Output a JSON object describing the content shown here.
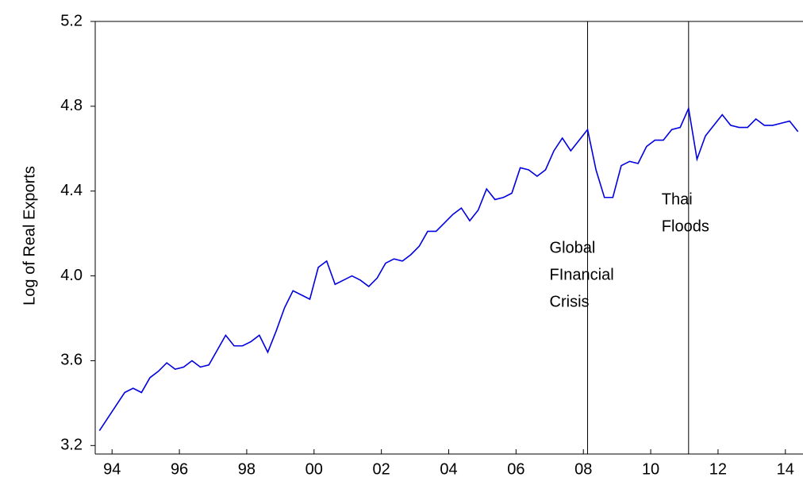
{
  "chart_data": {
    "type": "line",
    "y_label": "Log of Real Exports",
    "x": [
      1994.125,
      1994.375,
      1994.625,
      1994.875,
      1995.125,
      1995.375,
      1995.625,
      1995.875,
      1996.125,
      1996.375,
      1996.625,
      1996.875,
      1997.125,
      1997.375,
      1997.625,
      1997.875,
      1998.125,
      1998.375,
      1998.625,
      1998.875,
      1999.125,
      1999.375,
      1999.625,
      1999.875,
      2000.125,
      2000.375,
      2000.625,
      2000.875,
      2001.125,
      2001.375,
      2001.625,
      2001.875,
      2002.125,
      2002.375,
      2002.625,
      2002.875,
      2003.125,
      2003.375,
      2003.625,
      2003.875,
      2004.125,
      2004.375,
      2004.625,
      2004.875,
      2005.125,
      2005.375,
      2005.625,
      2005.875,
      2006.125,
      2006.375,
      2006.625,
      2006.875,
      2007.125,
      2007.375,
      2007.625,
      2007.875,
      2008.125,
      2008.375,
      2008.625,
      2008.875,
      2009.125,
      2009.375,
      2009.625,
      2009.875,
      2010.125,
      2010.375,
      2010.625,
      2010.875,
      2011.125,
      2011.375,
      2011.625,
      2011.875,
      2012.125,
      2012.375,
      2012.625,
      2012.875,
      2013.125,
      2013.375,
      2013.625,
      2013.875,
      2014.125,
      2014.375,
      2014.625,
      2014.875
    ],
    "series": [
      {
        "name": "Log of Real Exports",
        "color": "#0000e0",
        "values": [
          3.27,
          3.33,
          3.39,
          3.45,
          3.47,
          3.45,
          3.52,
          3.55,
          3.59,
          3.56,
          3.57,
          3.6,
          3.57,
          3.58,
          3.65,
          3.72,
          3.67,
          3.67,
          3.69,
          3.72,
          3.64,
          3.74,
          3.85,
          3.93,
          3.91,
          3.89,
          4.04,
          4.07,
          3.96,
          3.98,
          4.0,
          3.98,
          3.95,
          3.99,
          4.06,
          4.08,
          4.07,
          4.1,
          4.14,
          4.21,
          4.21,
          4.25,
          4.29,
          4.32,
          4.26,
          4.31,
          4.41,
          4.36,
          4.37,
          4.39,
          4.51,
          4.5,
          4.47,
          4.5,
          4.59,
          4.65,
          4.59,
          4.64,
          4.69,
          4.5,
          4.37,
          4.37,
          4.52,
          4.54,
          4.53,
          4.61,
          4.64,
          4.64,
          4.69,
          4.7,
          4.79,
          4.55,
          4.66,
          4.71,
          4.76,
          4.71,
          4.7,
          4.7,
          4.74,
          4.71,
          4.71,
          4.72,
          4.73,
          4.68
        ]
      }
    ],
    "xlim": [
      1994,
      2015
    ],
    "xticks": [
      {
        "value": 1994.5,
        "label": "94"
      },
      {
        "value": 1996.5,
        "label": "96"
      },
      {
        "value": 1998.5,
        "label": "98"
      },
      {
        "value": 2000.5,
        "label": "00"
      },
      {
        "value": 2002.5,
        "label": "02"
      },
      {
        "value": 2004.5,
        "label": "04"
      },
      {
        "value": 2006.5,
        "label": "06"
      },
      {
        "value": 2008.5,
        "label": "08"
      },
      {
        "value": 2010.5,
        "label": "10"
      },
      {
        "value": 2012.5,
        "label": "12"
      },
      {
        "value": 2014.5,
        "label": "14"
      }
    ],
    "ylim": [
      3.16,
      5.2
    ],
    "yticks": [
      {
        "value": 3.2,
        "label": "3.2"
      },
      {
        "value": 3.6,
        "label": "3.6"
      },
      {
        "value": 4.0,
        "label": "4.0"
      },
      {
        "value": 4.4,
        "label": "4.4"
      },
      {
        "value": 4.8,
        "label": "4.8"
      },
      {
        "value": 5.2,
        "label": "5.2"
      }
    ],
    "annotations": [
      {
        "x": 2008.625,
        "lines": [
          "Global",
          "FInancial",
          "Crisis"
        ]
      },
      {
        "x": 2011.625,
        "lines": [
          "Thai",
          "Floods"
        ]
      }
    ]
  }
}
